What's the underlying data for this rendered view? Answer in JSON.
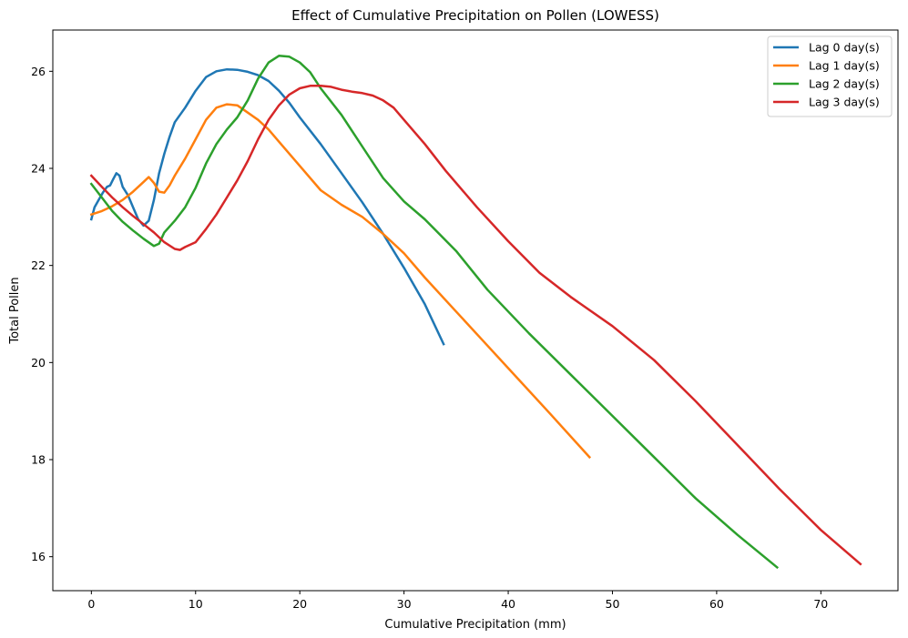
{
  "chart_data": {
    "type": "line",
    "title": "Effect of Cumulative Precipitation on Pollen (LOWESS)",
    "xlabel": "Cumulative Precipitation (mm)",
    "ylabel": "Total Pollen",
    "xlim": [
      -3.7,
      77.4
    ],
    "ylim": [
      15.3,
      26.85
    ],
    "xticks": [
      0,
      10,
      20,
      30,
      40,
      50,
      60,
      70
    ],
    "yticks": [
      16,
      18,
      20,
      22,
      24,
      26
    ],
    "grid": false,
    "legend_position": "upper right",
    "series": [
      {
        "name": "Lag 0 day(s)",
        "color": "#1f77b4",
        "points": [
          [
            0,
            22.95
          ],
          [
            0.3,
            23.2
          ],
          [
            0.7,
            23.35
          ],
          [
            1.1,
            23.5
          ],
          [
            1.5,
            23.62
          ],
          [
            1.8,
            23.65
          ],
          [
            2.1,
            23.78
          ],
          [
            2.4,
            23.9
          ],
          [
            2.7,
            23.85
          ],
          [
            3.0,
            23.62
          ],
          [
            3.5,
            23.45
          ],
          [
            4.0,
            23.2
          ],
          [
            4.5,
            22.95
          ],
          [
            5.0,
            22.82
          ],
          [
            5.5,
            22.92
          ],
          [
            6.0,
            23.35
          ],
          [
            6.5,
            23.9
          ],
          [
            7.0,
            24.3
          ],
          [
            7.5,
            24.65
          ],
          [
            8.0,
            24.95
          ],
          [
            8.5,
            25.1
          ],
          [
            9.0,
            25.25
          ],
          [
            10.0,
            25.6
          ],
          [
            11.0,
            25.88
          ],
          [
            12.0,
            26.0
          ],
          [
            13.0,
            26.04
          ],
          [
            14.0,
            26.03
          ],
          [
            15.0,
            25.99
          ],
          [
            16.0,
            25.92
          ],
          [
            17.0,
            25.8
          ],
          [
            18.0,
            25.6
          ],
          [
            19.0,
            25.35
          ],
          [
            20.0,
            25.05
          ],
          [
            22.0,
            24.5
          ],
          [
            24.0,
            23.9
          ],
          [
            26.0,
            23.3
          ],
          [
            28.0,
            22.65
          ],
          [
            30.0,
            21.95
          ],
          [
            32.0,
            21.2
          ],
          [
            33.8,
            20.38
          ]
        ]
      },
      {
        "name": "Lag 1 day(s)",
        "color": "#ff7f0e",
        "points": [
          [
            0,
            23.05
          ],
          [
            1.0,
            23.12
          ],
          [
            2.0,
            23.22
          ],
          [
            3.0,
            23.35
          ],
          [
            4.0,
            23.52
          ],
          [
            5.0,
            23.72
          ],
          [
            5.5,
            23.82
          ],
          [
            6.0,
            23.7
          ],
          [
            6.5,
            23.52
          ],
          [
            7.0,
            23.5
          ],
          [
            7.5,
            23.65
          ],
          [
            8.0,
            23.85
          ],
          [
            9.0,
            24.2
          ],
          [
            10.0,
            24.6
          ],
          [
            11.0,
            25.0
          ],
          [
            12.0,
            25.25
          ],
          [
            13.0,
            25.32
          ],
          [
            14.0,
            25.3
          ],
          [
            15.0,
            25.15
          ],
          [
            16.0,
            25.0
          ],
          [
            17.0,
            24.8
          ],
          [
            18.0,
            24.55
          ],
          [
            20.0,
            24.05
          ],
          [
            22.0,
            23.55
          ],
          [
            24.0,
            23.25
          ],
          [
            26.0,
            23.0
          ],
          [
            28.0,
            22.65
          ],
          [
            30.0,
            22.25
          ],
          [
            32.0,
            21.75
          ],
          [
            35.0,
            21.05
          ],
          [
            38.0,
            20.35
          ],
          [
            41.0,
            19.65
          ],
          [
            44.0,
            18.95
          ],
          [
            47.8,
            18.05
          ]
        ]
      },
      {
        "name": "Lag 2 day(s)",
        "color": "#2ca02c",
        "points": [
          [
            0,
            23.68
          ],
          [
            1.0,
            23.4
          ],
          [
            2.0,
            23.12
          ],
          [
            3.0,
            22.9
          ],
          [
            4.0,
            22.72
          ],
          [
            5.0,
            22.55
          ],
          [
            6.0,
            22.4
          ],
          [
            6.5,
            22.45
          ],
          [
            7.0,
            22.68
          ],
          [
            8.0,
            22.92
          ],
          [
            9.0,
            23.2
          ],
          [
            10.0,
            23.6
          ],
          [
            11.0,
            24.1
          ],
          [
            12.0,
            24.5
          ],
          [
            13.0,
            24.8
          ],
          [
            14.0,
            25.05
          ],
          [
            15.0,
            25.4
          ],
          [
            16.0,
            25.85
          ],
          [
            17.0,
            26.18
          ],
          [
            18.0,
            26.32
          ],
          [
            19.0,
            26.3
          ],
          [
            20.0,
            26.18
          ],
          [
            21.0,
            25.98
          ],
          [
            22.0,
            25.65
          ],
          [
            24.0,
            25.1
          ],
          [
            26.0,
            24.45
          ],
          [
            28.0,
            23.8
          ],
          [
            30.0,
            23.32
          ],
          [
            32.0,
            22.95
          ],
          [
            35.0,
            22.3
          ],
          [
            38.0,
            21.5
          ],
          [
            42.0,
            20.6
          ],
          [
            46.0,
            19.75
          ],
          [
            50.0,
            18.9
          ],
          [
            54.0,
            18.05
          ],
          [
            58.0,
            17.2
          ],
          [
            62.0,
            16.45
          ],
          [
            65.8,
            15.78
          ]
        ]
      },
      {
        "name": "Lag 3 day(s)",
        "color": "#d62728",
        "points": [
          [
            0,
            23.85
          ],
          [
            1.0,
            23.62
          ],
          [
            2.0,
            23.4
          ],
          [
            3.0,
            23.2
          ],
          [
            4.0,
            23.02
          ],
          [
            5.0,
            22.85
          ],
          [
            6.0,
            22.68
          ],
          [
            7.0,
            22.48
          ],
          [
            8.0,
            22.34
          ],
          [
            8.5,
            22.32
          ],
          [
            9.0,
            22.38
          ],
          [
            10.0,
            22.48
          ],
          [
            11.0,
            22.75
          ],
          [
            12.0,
            23.05
          ],
          [
            13.0,
            23.4
          ],
          [
            14.0,
            23.75
          ],
          [
            15.0,
            24.15
          ],
          [
            16.0,
            24.6
          ],
          [
            17.0,
            25.0
          ],
          [
            18.0,
            25.3
          ],
          [
            19.0,
            25.52
          ],
          [
            20.0,
            25.65
          ],
          [
            21.0,
            25.7
          ],
          [
            22.0,
            25.7
          ],
          [
            23.0,
            25.68
          ],
          [
            24.0,
            25.62
          ],
          [
            25.0,
            25.58
          ],
          [
            26.0,
            25.55
          ],
          [
            27.0,
            25.5
          ],
          [
            28.0,
            25.4
          ],
          [
            29.0,
            25.25
          ],
          [
            30.0,
            25.0
          ],
          [
            32.0,
            24.5
          ],
          [
            34.0,
            23.95
          ],
          [
            37.0,
            23.2
          ],
          [
            40.0,
            22.5
          ],
          [
            43.0,
            21.85
          ],
          [
            46.0,
            21.35
          ],
          [
            50.0,
            20.75
          ],
          [
            54.0,
            20.05
          ],
          [
            58.0,
            19.2
          ],
          [
            62.0,
            18.3
          ],
          [
            66.0,
            17.4
          ],
          [
            70.0,
            16.55
          ],
          [
            73.8,
            15.85
          ]
        ]
      }
    ]
  }
}
